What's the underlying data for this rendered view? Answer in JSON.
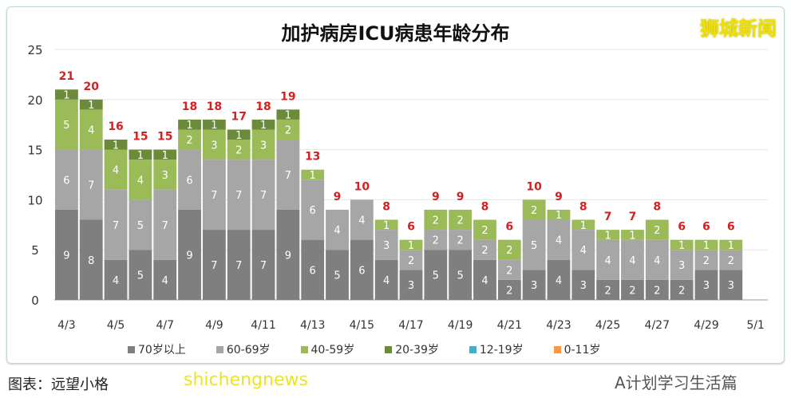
{
  "chart_data": {
    "type": "bar",
    "stacked": true,
    "title": "加护病房ICU病患年龄分布",
    "categories": [
      "4/3",
      "4/4",
      "4/5",
      "4/6",
      "4/7",
      "4/8",
      "4/9",
      "4/10",
      "4/11",
      "4/12",
      "4/13",
      "4/14",
      "4/15",
      "4/16",
      "4/17",
      "4/18",
      "4/19",
      "4/20",
      "4/21",
      "4/22",
      "4/23",
      "4/24",
      "4/25",
      "4/26",
      "4/27",
      "4/28",
      "4/29",
      "4/30",
      "5/1"
    ],
    "x_tick_labels": [
      "4/3",
      "4/5",
      "4/7",
      "4/9",
      "4/11",
      "4/13",
      "4/15",
      "4/17",
      "4/19",
      "4/21",
      "4/23",
      "4/25",
      "4/27",
      "4/29",
      "5/1"
    ],
    "y_ticks": [
      0,
      5,
      10,
      15,
      20,
      25
    ],
    "ylim": [
      0,
      25
    ],
    "grid": true,
    "legend": "bottom",
    "series": [
      {
        "name": "70岁以上",
        "color": "#7f7f7f",
        "values": [
          9,
          8,
          4,
          5,
          4,
          9,
          7,
          7,
          7,
          9,
          6,
          5,
          6,
          4,
          3,
          5,
          5,
          4,
          2,
          3,
          4,
          3,
          2,
          2,
          2,
          2,
          3,
          3,
          0
        ]
      },
      {
        "name": "60-69岁",
        "color": "#a6a6a6",
        "values": [
          6,
          7,
          7,
          5,
          7,
          6,
          7,
          7,
          7,
          7,
          6,
          4,
          4,
          3,
          2,
          2,
          2,
          2,
          2,
          5,
          4,
          4,
          4,
          4,
          4,
          3,
          2,
          2,
          0
        ]
      },
      {
        "name": "40-59岁",
        "color": "#9bbb59",
        "values": [
          5,
          4,
          4,
          4,
          3,
          2,
          3,
          2,
          3,
          2,
          1,
          0,
          0,
          1,
          1,
          2,
          2,
          2,
          2,
          2,
          1,
          1,
          1,
          1,
          2,
          1,
          1,
          1,
          0
        ]
      },
      {
        "name": "20-39岁",
        "color": "#6b8a3a",
        "values": [
          1,
          1,
          1,
          1,
          1,
          1,
          1,
          1,
          1,
          1,
          0,
          0,
          0,
          0,
          0,
          0,
          0,
          0,
          0,
          0,
          0,
          0,
          0,
          0,
          0,
          0,
          0,
          0,
          0
        ]
      },
      {
        "name": "12-19岁",
        "color": "#4bacc6",
        "values": [
          0,
          0,
          0,
          0,
          0,
          0,
          0,
          0,
          0,
          0,
          0,
          0,
          0,
          0,
          0,
          0,
          0,
          0,
          0,
          0,
          0,
          0,
          0,
          0,
          0,
          0,
          0,
          0,
          0
        ]
      },
      {
        "name": "0-11岁",
        "color": "#f79646",
        "values": [
          0,
          0,
          0,
          0,
          0,
          0,
          0,
          0,
          0,
          0,
          0,
          0,
          0,
          0,
          0,
          0,
          0,
          0,
          0,
          0,
          0,
          0,
          0,
          0,
          0,
          0,
          0,
          0,
          0
        ]
      }
    ],
    "totals": [
      21,
      20,
      16,
      15,
      15,
      18,
      18,
      17,
      18,
      19,
      13,
      9,
      10,
      8,
      6,
      9,
      9,
      8,
      6,
      10,
      9,
      8,
      7,
      7,
      8,
      6,
      6,
      6,
      null
    ],
    "total_label_color": "#d42020"
  },
  "watermark": "狮城新闻",
  "footer": {
    "source": "图表：远望小格",
    "overlay": "shichengnews",
    "account": "A计划学习生活篇"
  }
}
